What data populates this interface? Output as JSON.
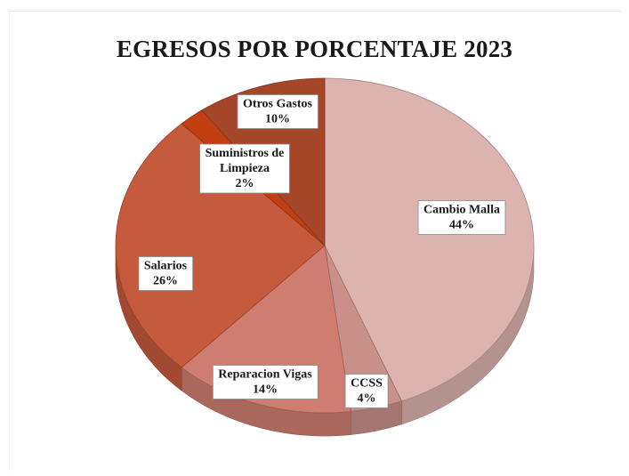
{
  "chart_data": {
    "type": "pie",
    "title": "EGRESOS POR PORCENTAJE 2023",
    "slices": [
      {
        "label": [
          "Cambio Malla"
        ],
        "percent_label": "44%",
        "value": 44,
        "color": "#dcb3ae"
      },
      {
        "label": [
          "CCSS"
        ],
        "percent_label": "4%",
        "value": 4,
        "color": "#c9908a"
      },
      {
        "label": [
          "Reparacion Vigas"
        ],
        "percent_label": "14%",
        "value": 14,
        "color": "#cf7d70"
      },
      {
        "label": [
          "Salarios"
        ],
        "percent_label": "26%",
        "value": 26,
        "color": "#c65a3c"
      },
      {
        "label": [
          "Suministros de",
          "Limpieza"
        ],
        "percent_label": "2%",
        "value": 2,
        "color": "#c23f13"
      },
      {
        "label": [
          "Otros Gastos"
        ],
        "percent_label": "10%",
        "value": 10,
        "color": "#a64628"
      }
    ]
  }
}
